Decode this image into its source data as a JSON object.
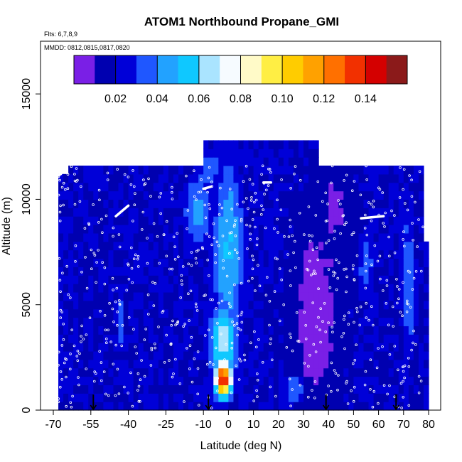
{
  "chart_data": {
    "type": "heatmap",
    "title": "ATOM1 Northbound Propane_GMI",
    "annotations": {
      "flights": "Flts: 6,7,8,9",
      "dates": "MMDD: 0812,0815,0817,0820"
    },
    "xlabel": "Latitude (deg N)",
    "ylabel": "Altitude (m)",
    "xlim": [
      -70,
      80
    ],
    "ylim": [
      0,
      17500
    ],
    "x_ticks": [
      -70,
      -55,
      -40,
      -25,
      -10,
      0,
      10,
      20,
      30,
      40,
      50,
      60,
      70,
      80
    ],
    "x_tick_labels": [
      "-70",
      "-55",
      "-40",
      "-25",
      "-10",
      "0",
      "10",
      "20",
      "30",
      "40",
      "50",
      "60",
      "70",
      "80"
    ],
    "y_ticks": [
      0,
      5000,
      10000,
      15000
    ],
    "y_tick_labels": [
      "0",
      "5000",
      "10000",
      "15000"
    ],
    "colorbar": {
      "range": [
        0.0,
        0.16
      ],
      "ticks": [
        0.02,
        0.04,
        0.06,
        0.08,
        0.1,
        0.12,
        0.14
      ],
      "tick_labels": [
        "0.02",
        "0.04",
        "0.06",
        "0.08",
        "0.10",
        "0.12",
        "0.14"
      ],
      "colors": [
        "#7a1fe6",
        "#0000b0",
        "#0000d8",
        "#1f57ff",
        "#22a2ff",
        "#0fc8ff",
        "#aae4ff",
        "#f6fbff",
        "#fffac8",
        "#ffee44",
        "#ffcc00",
        "#ffa100",
        "#ff7000",
        "#f23000",
        "#d40000",
        "#8b1a1a"
      ]
    },
    "arrows_latitude": [
      -54,
      -8,
      39,
      67
    ],
    "background_value": 0.02,
    "top_altitude": 12800,
    "features": [
      {
        "lat": -2,
        "alt": 1500,
        "lat_sigma": 2.6,
        "alt_sigma": 650,
        "value": 0.135
      },
      {
        "lat": -2,
        "alt": 3200,
        "lat_sigma": 4.5,
        "alt_sigma": 1400,
        "value": 0.06
      },
      {
        "lat": 0,
        "alt": 7500,
        "lat_sigma": 5,
        "alt_sigma": 3500,
        "value": 0.045
      },
      {
        "lat": -12,
        "alt": 9500,
        "lat_sigma": 5,
        "alt_sigma": 1500,
        "value": 0.038
      },
      {
        "lat": -7,
        "alt": 11500,
        "lat_sigma": 4,
        "alt_sigma": 900,
        "value": 0.032
      },
      {
        "lat": 72,
        "alt": 6000,
        "lat_sigma": 2.5,
        "alt_sigma": 3000,
        "value": 0.035
      },
      {
        "lat": 55,
        "alt": 7000,
        "lat_sigma": 3,
        "alt_sigma": 1500,
        "value": 0.03
      },
      {
        "lat": -43,
        "alt": 4300,
        "lat_sigma": 1.5,
        "alt_sigma": 1200,
        "value": 0.032
      },
      {
        "lat": 26,
        "alt": 1000,
        "lat_sigma": 5,
        "alt_sigma": 800,
        "value": 0.03
      }
    ],
    "low_regions": [
      {
        "lat": 35,
        "alt": 4500,
        "lat_sigma": 6,
        "alt_sigma": 3000,
        "value": 0.002
      },
      {
        "lat": 43,
        "alt": 9500,
        "lat_sigma": 4,
        "alt_sigma": 1500,
        "value": 0.008
      }
    ],
    "flight_tracks": [
      {
        "lat_start": -45,
        "lat_end": -40,
        "alt_start": 9200,
        "alt_end": 9700
      },
      {
        "lat_start": 53,
        "lat_end": 62,
        "alt_start": 9100,
        "alt_end": 9200
      },
      {
        "lat_start": -70,
        "lat_end": -67,
        "alt_start": 11000,
        "alt_end": 11200
      },
      {
        "lat_start": -10,
        "lat_end": -7,
        "alt_start": 10500,
        "alt_end": 10600
      },
      {
        "lat_start": 14,
        "lat_end": 17,
        "alt_start": 10800,
        "alt_end": 10800
      }
    ]
  }
}
